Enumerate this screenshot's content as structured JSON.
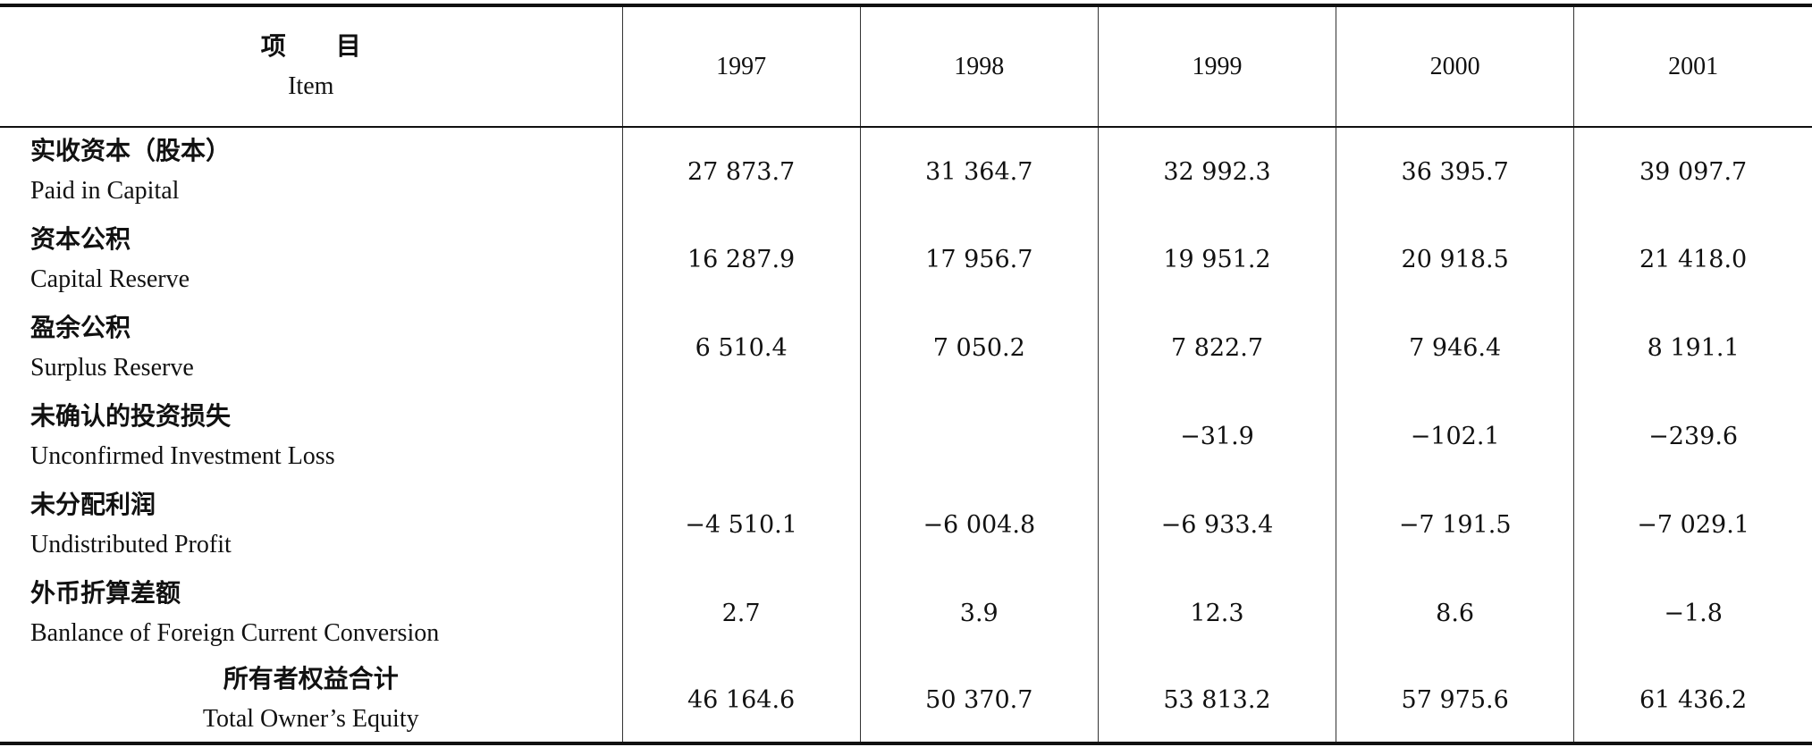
{
  "table": {
    "header": {
      "item_zh": "项　　目",
      "item_en": "Item",
      "years": [
        "1997",
        "1998",
        "1999",
        "2000",
        "2001"
      ]
    },
    "rows": [
      {
        "zh": "实收资本（股本）",
        "en": "Paid in Capital",
        "values": [
          "27 873.7",
          "31 364.7",
          "32 992.3",
          "36 395.7",
          "39 097.7"
        ]
      },
      {
        "zh": "资本公积",
        "en": "Capital Reserve",
        "values": [
          "16 287.9",
          "17 956.7",
          "19 951.2",
          "20 918.5",
          "21 418.0"
        ]
      },
      {
        "zh": "盈余公积",
        "en": "Surplus Reserve",
        "values": [
          "6 510.4",
          "7 050.2",
          "7 822.7",
          "7 946.4",
          "8 191.1"
        ]
      },
      {
        "zh": "未确认的投资损失",
        "en": "Unconfirmed Investment Loss",
        "values": [
          null,
          null,
          "−31.9",
          "−102.1",
          "−239.6"
        ]
      },
      {
        "zh": "未分配利润",
        "en": "Undistributed Profit",
        "values": [
          "−4 510.1",
          "−6 004.8",
          "−6 933.4",
          "−7 191.5",
          "−7 029.1"
        ]
      },
      {
        "zh": "外币折算差额",
        "en": "Banlance of Foreign Current Conversion",
        "values": [
          "2.7",
          "3.9",
          "12.3",
          "8.6",
          "−1.8"
        ]
      }
    ],
    "total": {
      "zh": "所有者权益合计",
      "en": "Total Owner’s Equity",
      "values": [
        "46 164.6",
        "50 370.7",
        "53 813.2",
        "57 975.6",
        "61 436.2"
      ]
    }
  }
}
